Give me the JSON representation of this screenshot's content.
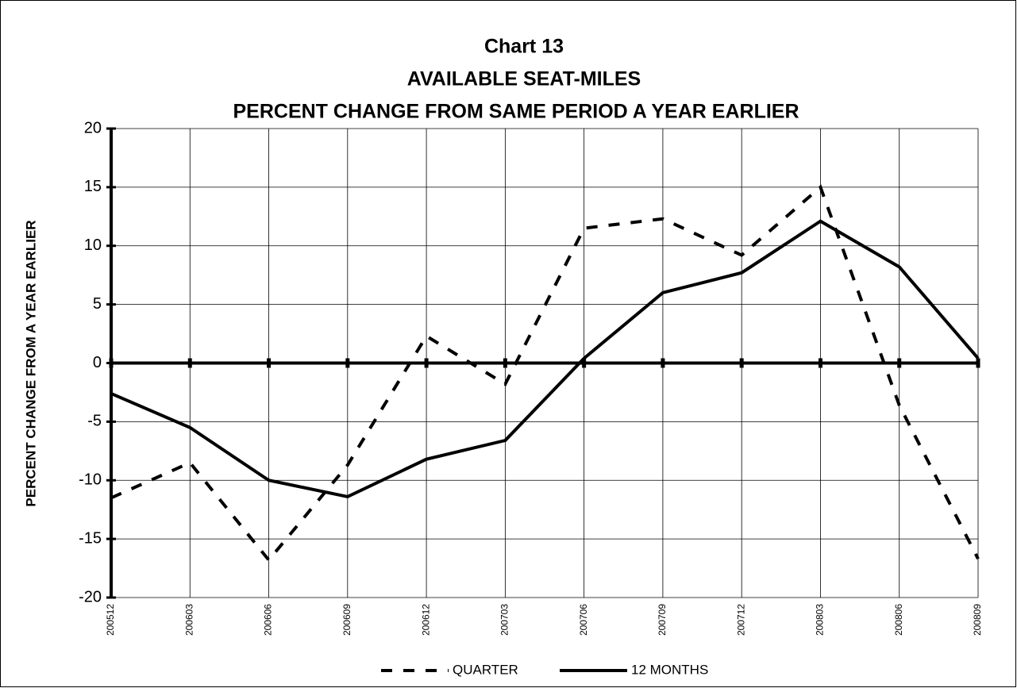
{
  "chart_data": {
    "type": "line",
    "title": "Chart 13",
    "subtitle": [
      "AVAILABLE SEAT-MILES",
      "PERCENT CHANGE FROM SAME PERIOD A YEAR EARLIER"
    ],
    "y_label": "PERCENT CHANGE FROM A YEAR EARLIER",
    "categories": [
      "200512",
      "200603",
      "200606",
      "200609",
      "200612",
      "200703",
      "200706",
      "200709",
      "200712",
      "200803",
      "200806",
      "200809"
    ],
    "series": [
      {
        "name": "QUARTER",
        "color": "#000000",
        "dashed": true,
        "values": [
          -11.5,
          -8.5,
          -16.8,
          -8.7,
          2.3,
          -1.8,
          11.5,
          12.3,
          9.2,
          15.0,
          -3.6,
          -16.7
        ]
      },
      {
        "name": "12 MONTHS",
        "color": "#000000",
        "dashed": false,
        "values": [
          -2.6,
          -5.5,
          -10.0,
          -11.4,
          -8.2,
          -6.6,
          0.4,
          6.0,
          7.7,
          12.1,
          8.2,
          0.4
        ]
      }
    ],
    "ylim": [
      -20,
      20
    ],
    "yticks": [
      -20,
      -15,
      -10,
      -5,
      0,
      5,
      10,
      15,
      20
    ],
    "grid": true,
    "legend": "bottom"
  }
}
